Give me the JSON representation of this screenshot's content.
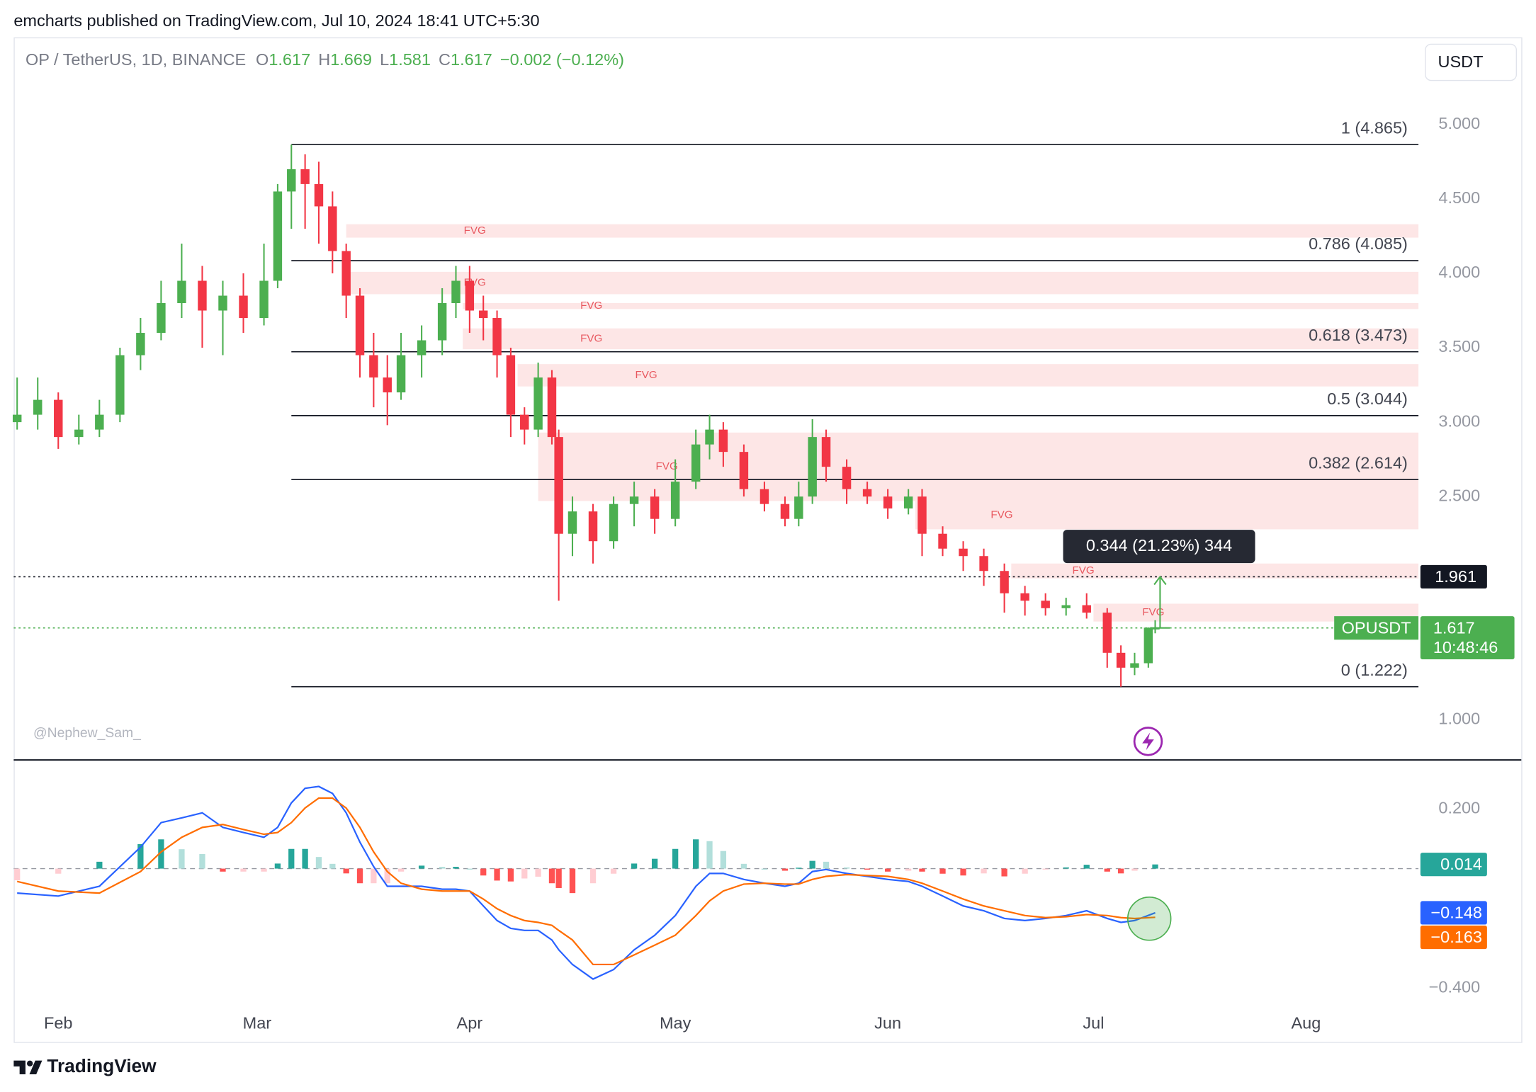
{
  "header": {
    "publisher": "emcharts published on TradingView.com, Jul 10, 2024 18:41 UTC+5:30"
  },
  "footer": {
    "brand": "TradingView"
  },
  "chart_data": [
    {
      "type": "candlestick",
      "title": "OP / TetherUS, 1D, BINANCE",
      "ohlc": [
        {
          "label": "O",
          "value": "1.617"
        },
        {
          "label": "H",
          "value": "1.669"
        },
        {
          "label": "L",
          "value": "1.581"
        },
        {
          "label": "C",
          "value": "1.617"
        }
      ],
      "change": "−0.002 (−0.12%)",
      "currency": "USDT",
      "watermark": "@Nephew_Sam_",
      "color_up": "#4caf50",
      "color_down": "#f23645",
      "x": [
        0,
        3,
        6,
        9,
        12,
        15,
        18,
        21,
        24,
        27,
        30,
        33,
        36,
        38,
        40,
        42,
        44,
        46,
        48,
        50,
        52,
        54,
        56,
        59,
        62,
        64,
        66,
        68,
        70,
        72,
        74,
        76,
        78,
        79,
        81,
        84,
        87,
        90,
        93,
        96,
        99,
        101,
        103,
        106,
        109,
        112,
        114,
        116,
        118,
        121,
        124,
        127,
        130,
        132,
        135,
        138,
        141,
        144,
        147,
        150,
        153,
        156,
        159,
        161,
        163,
        165,
        166
      ],
      "open": [
        3.0,
        3.05,
        3.15,
        2.9,
        2.95,
        3.05,
        3.45,
        3.6,
        3.8,
        3.95,
        3.75,
        3.85,
        3.7,
        3.95,
        4.55,
        4.7,
        4.6,
        4.45,
        4.15,
        3.85,
        3.45,
        3.3,
        3.2,
        3.45,
        3.55,
        3.8,
        3.95,
        3.75,
        3.7,
        3.45,
        3.05,
        2.95,
        3.3,
        2.9,
        2.25,
        2.4,
        2.2,
        2.45,
        2.5,
        2.35,
        2.6,
        2.85,
        2.95,
        2.8,
        2.55,
        2.45,
        2.35,
        2.5,
        2.9,
        2.7,
        2.55,
        2.5,
        2.42,
        2.5,
        2.25,
        2.15,
        2.1,
        2.0,
        1.85,
        1.8,
        1.75,
        1.77,
        1.72,
        1.45,
        1.35,
        1.38,
        1.617
      ],
      "high": [
        3.3,
        3.3,
        3.2,
        3.05,
        3.15,
        3.5,
        3.7,
        3.95,
        4.2,
        4.05,
        3.95,
        4.0,
        4.2,
        4.6,
        4.865,
        4.8,
        4.75,
        4.55,
        4.2,
        3.9,
        3.6,
        3.45,
        3.6,
        3.65,
        3.9,
        4.05,
        4.05,
        3.85,
        3.75,
        3.5,
        3.1,
        3.4,
        3.35,
        2.95,
        2.5,
        2.45,
        2.5,
        2.6,
        2.55,
        2.75,
        2.95,
        3.05,
        3.0,
        2.85,
        2.6,
        2.5,
        2.6,
        3.02,
        2.95,
        2.75,
        2.6,
        2.55,
        2.55,
        2.55,
        2.3,
        2.2,
        2.15,
        2.05,
        1.9,
        1.85,
        1.82,
        1.85,
        1.75,
        1.5,
        1.45,
        1.62,
        1.669
      ],
      "low": [
        2.95,
        2.95,
        2.82,
        2.85,
        2.9,
        3.0,
        3.35,
        3.55,
        3.7,
        3.5,
        3.45,
        3.6,
        3.65,
        3.9,
        4.3,
        4.3,
        4.2,
        4.0,
        3.7,
        3.3,
        3.1,
        2.98,
        3.15,
        3.3,
        3.45,
        3.7,
        3.6,
        3.55,
        3.3,
        2.9,
        2.85,
        2.9,
        2.85,
        1.8,
        2.1,
        2.05,
        2.15,
        2.3,
        2.25,
        2.3,
        2.55,
        2.75,
        2.7,
        2.5,
        2.4,
        2.3,
        2.3,
        2.45,
        2.6,
        2.45,
        2.45,
        2.35,
        2.38,
        2.1,
        2.1,
        2.0,
        1.9,
        1.72,
        1.7,
        1.7,
        1.7,
        1.68,
        1.35,
        1.222,
        1.3,
        1.35,
        1.581
      ],
      "close": [
        3.05,
        3.15,
        2.9,
        2.95,
        3.05,
        3.45,
        3.6,
        3.8,
        3.95,
        3.75,
        3.85,
        3.7,
        3.95,
        4.55,
        4.7,
        4.6,
        4.45,
        4.15,
        3.85,
        3.45,
        3.3,
        3.2,
        3.45,
        3.55,
        3.8,
        3.95,
        3.75,
        3.7,
        3.45,
        3.05,
        2.95,
        3.3,
        2.9,
        2.25,
        2.4,
        2.2,
        2.45,
        2.5,
        2.35,
        2.6,
        2.85,
        2.95,
        2.8,
        2.55,
        2.45,
        2.35,
        2.5,
        2.9,
        2.7,
        2.55,
        2.5,
        2.42,
        2.5,
        2.25,
        2.15,
        2.1,
        2.0,
        1.85,
        1.8,
        1.75,
        1.77,
        1.72,
        1.45,
        1.35,
        1.38,
        1.619,
        1.617
      ],
      "xlim": [
        -0.5,
        204.4
      ],
      "ylim": [
        0.73,
        5.586
      ],
      "yticks": [
        {
          "value": 5,
          "label": "5.000"
        },
        {
          "value": 4.5,
          "label": "4.500"
        },
        {
          "value": 4,
          "label": "4.000"
        },
        {
          "value": 3.5,
          "label": "3.500"
        },
        {
          "value": 3,
          "label": "3.000"
        },
        {
          "value": 2.5,
          "label": "2.500"
        },
        {
          "value": 1,
          "label": "1.000"
        }
      ],
      "xticks": [
        {
          "value": 6,
          "label": "Feb"
        },
        {
          "value": 35,
          "label": "Mar"
        },
        {
          "value": 66,
          "label": "Apr"
        },
        {
          "value": 96,
          "label": "May"
        },
        {
          "value": 127,
          "label": "Jun"
        },
        {
          "value": 157,
          "label": "Jul"
        },
        {
          "value": 188,
          "label": "Aug"
        }
      ],
      "fib_levels": [
        {
          "value": 4.865,
          "label": "1 (4.865)"
        },
        {
          "value": 4.085,
          "label": "0.786 (4.085)"
        },
        {
          "value": 3.473,
          "label": "0.618 (3.473)"
        },
        {
          "value": 3.044,
          "label": "0.5 (3.044)"
        },
        {
          "value": 2.614,
          "label": "0.382 (2.614)"
        },
        {
          "value": 1.222,
          "label": "0 (1.222)"
        }
      ],
      "zones": [
        {
          "label": "FVG",
          "start": 48,
          "top": 4.33,
          "bottom": 4.24
        },
        {
          "label": "FVG",
          "start": 48,
          "top": 4.01,
          "bottom": 3.86
        },
        {
          "label": "FVG",
          "start": 65,
          "top": 3.8,
          "bottom": 3.76
        },
        {
          "label": "FVG",
          "start": 65,
          "top": 3.63,
          "bottom": 3.49
        },
        {
          "label": "FVG",
          "start": 73,
          "top": 3.39,
          "bottom": 3.24
        },
        {
          "label": "FVG",
          "start": 76,
          "top": 2.93,
          "bottom": 2.47
        },
        {
          "label": "FVG",
          "start": 131,
          "top": 2.47,
          "bottom": 2.28
        },
        {
          "label": "FVG",
          "start": 145,
          "top": 2.05,
          "bottom": 1.95
        },
        {
          "label": "FVG",
          "start": 157,
          "top": 1.78,
          "bottom": 1.66
        }
      ],
      "zone_color": "#fde2e2",
      "marker_level": {
        "value": 1.961,
        "label": "1.961"
      },
      "measure": {
        "label": "0.344 (21.23%) 344"
      },
      "last_price": {
        "symbol": "OPUSDT",
        "label": "1.617",
        "countdown": "10:48:46"
      }
    },
    {
      "type": "macd",
      "x": [
        0,
        6,
        12,
        18,
        21,
        24,
        27,
        30,
        33,
        36,
        38,
        40,
        42,
        44,
        46,
        48,
        50,
        52,
        54,
        56,
        59,
        62,
        64,
        66,
        68,
        70,
        72,
        74,
        76,
        78,
        79,
        81,
        84,
        87,
        90,
        93,
        96,
        99,
        101,
        103,
        106,
        109,
        112,
        114,
        116,
        118,
        121,
        124,
        127,
        130,
        132,
        135,
        138,
        141,
        144,
        147,
        150,
        153,
        156,
        159,
        161,
        163,
        166
      ],
      "series": [
        {
          "color": "#2962ff",
          "last_label": "−0.148",
          "values": [
            -0.082,
            -0.092,
            -0.059,
            0.072,
            0.154,
            0.17,
            0.187,
            0.138,
            0.121,
            0.105,
            0.138,
            0.22,
            0.269,
            0.275,
            0.252,
            0.187,
            0.089,
            0.007,
            -0.059,
            -0.059,
            -0.059,
            -0.069,
            -0.069,
            -0.075,
            -0.125,
            -0.174,
            -0.2,
            -0.207,
            -0.207,
            -0.239,
            -0.272,
            -0.321,
            -0.37,
            -0.338,
            -0.272,
            -0.223,
            -0.157,
            -0.059,
            -0.016,
            -0.016,
            -0.036,
            -0.049,
            -0.059,
            -0.049,
            -0.01,
            -0.003,
            -0.016,
            -0.026,
            -0.036,
            -0.043,
            -0.059,
            -0.092,
            -0.125,
            -0.141,
            -0.167,
            -0.174,
            -0.167,
            -0.157,
            -0.141,
            -0.167,
            -0.18,
            -0.174,
            -0.148
          ]
        },
        {
          "color": "#ff6d00",
          "last_label": "−0.163",
          "values": [
            -0.043,
            -0.075,
            -0.082,
            -0.01,
            0.056,
            0.105,
            0.138,
            0.148,
            0.131,
            0.115,
            0.121,
            0.154,
            0.203,
            0.236,
            0.236,
            0.203,
            0.138,
            0.056,
            -0.01,
            -0.049,
            -0.069,
            -0.075,
            -0.075,
            -0.075,
            -0.102,
            -0.134,
            -0.157,
            -0.174,
            -0.18,
            -0.19,
            -0.207,
            -0.239,
            -0.321,
            -0.321,
            -0.289,
            -0.256,
            -0.223,
            -0.157,
            -0.108,
            -0.075,
            -0.052,
            -0.049,
            -0.052,
            -0.052,
            -0.036,
            -0.026,
            -0.02,
            -0.023,
            -0.026,
            -0.036,
            -0.049,
            -0.075,
            -0.102,
            -0.125,
            -0.141,
            -0.157,
            -0.164,
            -0.161,
            -0.154,
            -0.157,
            -0.164,
            -0.167,
            -0.163
          ]
        }
      ],
      "histogram": [
        -0.039,
        -0.017,
        0.023,
        0.082,
        0.098,
        0.065,
        0.049,
        -0.01,
        -0.01,
        -0.01,
        0.017,
        0.066,
        0.066,
        0.039,
        0.016,
        -0.016,
        -0.049,
        -0.049,
        -0.049,
        -0.01,
        0.01,
        0.006,
        0.006,
        0,
        -0.023,
        -0.04,
        -0.043,
        -0.033,
        -0.027,
        -0.049,
        -0.065,
        -0.082,
        -0.049,
        -0.017,
        0.017,
        0.033,
        0.066,
        0.098,
        0.092,
        0.059,
        0.016,
        0,
        -0.007,
        0.003,
        0.026,
        0.023,
        0.004,
        -0.003,
        -0.01,
        -0.007,
        -0.01,
        -0.017,
        -0.023,
        -0.016,
        -0.026,
        -0.017,
        -0.003,
        0.004,
        0.013,
        -0.01,
        -0.016,
        -0.007,
        0.014
      ],
      "histogram_label": "0.014",
      "histogram_colors": [
        "#26a69a",
        "#b2dfdb",
        "#ff5252",
        "#ffcdd2"
      ],
      "ylim": [
        -0.469,
        0.364
      ],
      "yticks": [
        {
          "value": 0.2,
          "label": "0.200"
        },
        {
          "value": -0.4,
          "label": "−0.400"
        }
      ]
    }
  ]
}
